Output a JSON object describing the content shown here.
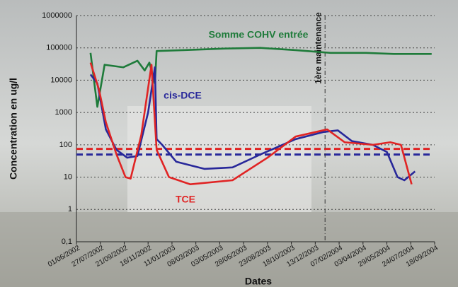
{
  "chart_data": {
    "type": "line",
    "y_label": "Concentration en ug/l",
    "x_label": "Dates",
    "log_scale": true,
    "grid": true,
    "ylim": [
      0.1,
      1000000
    ],
    "yticks": [
      {
        "value": 0.1,
        "label": "0,1"
      },
      1,
      10,
      100,
      1000,
      10000,
      100000,
      1000000
    ],
    "xlim": [
      "01/06/2002",
      "18/09/2004"
    ],
    "xticks": [
      "01/06/2002",
      "27/07/2002",
      "21/09/2002",
      "16/11/2002",
      "11/01/2003",
      "08/03/2003",
      "03/05/2003",
      "28/06/2003",
      "23/08/2003",
      "18/10/2003",
      "13/12/2003",
      "07/02/2004",
      "03/04/2004",
      "29/05/2004",
      "24/07/2004",
      "18/09/2004"
    ],
    "series": [
      {
        "name": "Somme COHV entrée",
        "color": "#1e7b3a",
        "x": [
          "04/07/2002",
          "20/07/2002",
          "06/08/2002",
          "19/09/2002",
          "22/10/2002",
          "08/11/2002",
          "19/11/2002",
          "02/12/2002",
          "06/12/2002",
          "06/02/2003",
          "16/05/2003",
          "06/08/2003",
          "28/10/2003",
          "18/01/2004",
          "10/04/2004",
          "14/06/2004",
          "26/07/2004",
          "11/09/2004"
        ],
        "values": [
          70000,
          1500,
          30000,
          25000,
          40000,
          20000,
          35000,
          8000,
          80000,
          85000,
          95000,
          100000,
          85000,
          70000,
          70000,
          65000,
          65000,
          65000
        ]
      },
      {
        "name": "cis-DCE",
        "color": "#28289a",
        "x": [
          "04/07/2002",
          "20/07/2002",
          "09/08/2002",
          "03/09/2002",
          "28/09/2002",
          "22/10/2002",
          "16/11/2002",
          "02/12/2002",
          "06/12/2002",
          "19/12/2002",
          "21/01/2003",
          "28/03/2003",
          "02/06/2003",
          "06/08/2003",
          "28/10/2003",
          "02/01/2004",
          "04/02/2004",
          "08/03/2004",
          "26/04/2004",
          "29/05/2004",
          "23/06/2004",
          "09/07/2004",
          "03/08/2004"
        ],
        "values": [
          15000,
          8000,
          300,
          70,
          40,
          45,
          1000,
          25000,
          150,
          100,
          30,
          18,
          20,
          50,
          150,
          250,
          280,
          130,
          100,
          60,
          10,
          8,
          15
        ]
      },
      {
        "name": "TCE",
        "color": "#e02424",
        "x": [
          "04/07/2002",
          "24/07/2002",
          "09/08/2002",
          "03/09/2002",
          "24/09/2002",
          "06/10/2002",
          "31/10/2002",
          "24/11/2002",
          "06/12/2002",
          "04/01/2003",
          "23/02/2003",
          "02/06/2003",
          "23/08/2003",
          "28/10/2003",
          "10/01/2004",
          "20/02/2004",
          "26/04/2004",
          "06/06/2004",
          "01/07/2004",
          "26/07/2004"
        ],
        "values": [
          35000,
          5000,
          500,
          50,
          10,
          9,
          200,
          30000,
          70,
          10,
          6,
          8,
          40,
          180,
          300,
          120,
          100,
          120,
          100,
          6
        ]
      }
    ],
    "reference_lines": [
      {
        "value": 75,
        "color": "#e02424"
      },
      {
        "value": 50,
        "color": "#28289a"
      }
    ],
    "event": {
      "x": "05/01/2004",
      "label": "1ère maintenance"
    }
  }
}
